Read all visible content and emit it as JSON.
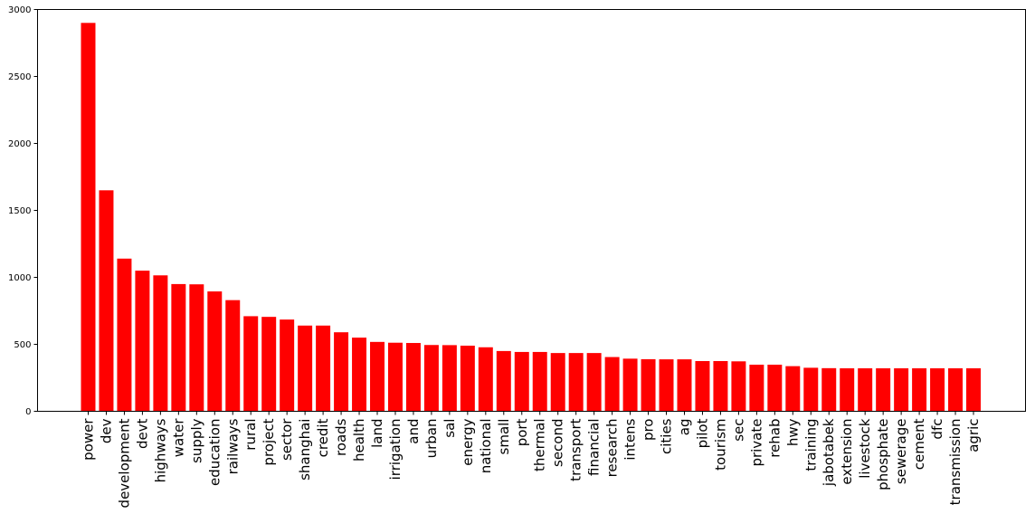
{
  "chart_data": {
    "type": "bar",
    "title": "",
    "xlabel": "",
    "ylabel": "",
    "ylim": [
      0,
      3000
    ],
    "yticks": [
      0,
      500,
      1000,
      1500,
      2000,
      2500,
      3000
    ],
    "grid": false,
    "bar_color": "#ff0000",
    "categories": [
      "power",
      "dev",
      "development",
      "devt",
      "highways",
      "water",
      "supply",
      "education",
      "railways",
      "rural",
      "project",
      "sector",
      "shanghai",
      "credit",
      "roads",
      "health",
      "land",
      "irrigation",
      "and",
      "urban",
      "sal",
      "energy",
      "national",
      "small",
      "port",
      "thermal",
      "second",
      "transport",
      "financial",
      "research",
      "intens",
      "pro",
      "cities",
      "ag",
      "pilot",
      "tourism",
      "sec",
      "private",
      "rehab",
      "hwy",
      "training",
      "jabotabek",
      "extension",
      "livestock",
      "phosphate",
      "sewerage",
      "cement",
      "dfc",
      "transmission",
      "agric"
    ],
    "values": [
      2900,
      1650,
      1140,
      1050,
      1015,
      950,
      948,
      895,
      830,
      710,
      705,
      685,
      640,
      640,
      590,
      550,
      518,
      512,
      510,
      495,
      494,
      490,
      478,
      450,
      443,
      443,
      435,
      435,
      435,
      405,
      393,
      389,
      388,
      388,
      375,
      375,
      373,
      348,
      348,
      337,
      325,
      322,
      321,
      321,
      321,
      321,
      321,
      321,
      321,
      321
    ]
  }
}
